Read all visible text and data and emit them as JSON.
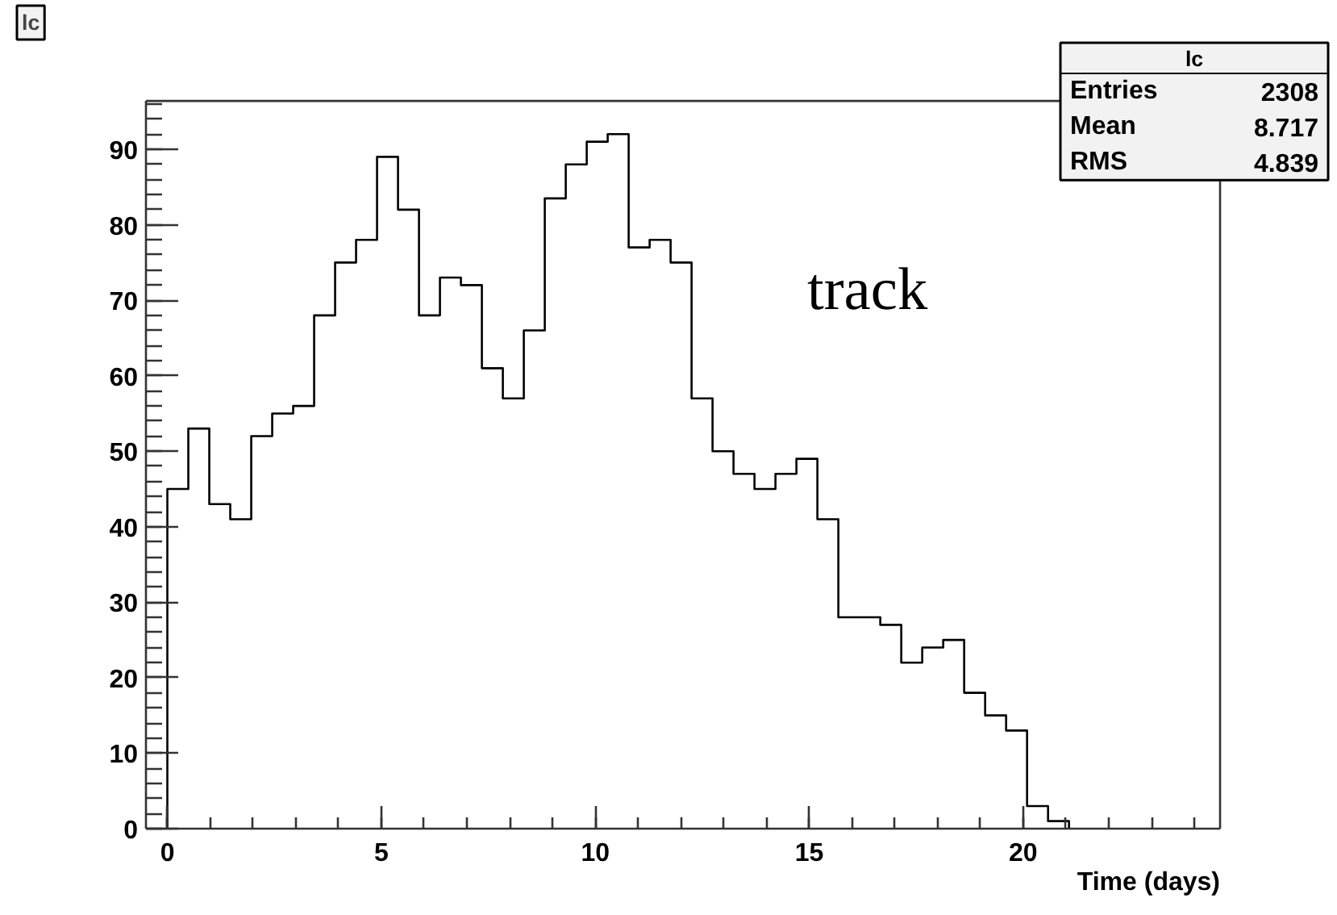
{
  "chart_data": {
    "type": "histogram",
    "title": "lc",
    "xlabel": "Time (days)",
    "bins": [
      0,
      0.49,
      0.98,
      1.47,
      1.96,
      2.45,
      2.94,
      3.43,
      3.92,
      4.41,
      4.9,
      5.39,
      5.88,
      6.37,
      6.86,
      7.35,
      7.84,
      8.33,
      8.82,
      9.31,
      9.8,
      10.29,
      10.78,
      11.27,
      11.76,
      12.25,
      12.74,
      13.23,
      13.72,
      14.21,
      14.7,
      15.19,
      15.68,
      16.17,
      16.66,
      17.15,
      17.64,
      18.13,
      18.62,
      19.11,
      19.6,
      20.09,
      20.58,
      21.07
    ],
    "values": [
      45,
      53,
      43,
      41,
      52,
      55,
      56,
      68,
      75,
      78,
      89,
      82,
      68,
      73,
      72,
      61,
      57,
      66,
      83.5,
      88,
      91,
      92,
      77,
      78,
      75,
      57,
      50,
      47,
      45,
      47,
      49,
      41,
      28,
      28,
      27,
      22,
      24,
      25,
      18,
      15,
      13,
      3,
      1
    ],
    "color": "#000000",
    "xlim": [
      -0.5,
      24.6
    ],
    "ylim": [
      0,
      96.4
    ],
    "xticks": [
      0,
      5,
      10,
      15,
      20
    ],
    "yticks": [
      0,
      10,
      20,
      30,
      40,
      50,
      60,
      70,
      80,
      90
    ],
    "grid": false,
    "annotations": [
      "track",
      "lc",
      "Entries 2308",
      "Mean 8.717",
      "RMS 4.839"
    ]
  }
}
